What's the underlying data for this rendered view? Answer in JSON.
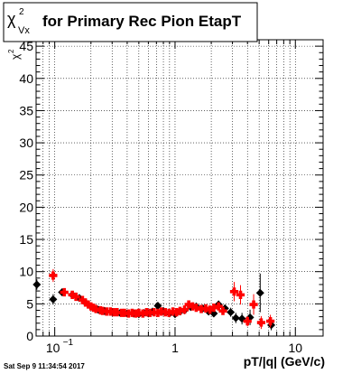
{
  "title": {
    "chi": "χ",
    "sup": "2",
    "sub": "Vx",
    "text": "for Primary Rec Pion EtapT"
  },
  "footer": {
    "timestamp": "Sat Sep  9 11:34:54 2017"
  },
  "chart_data": {
    "type": "scatter",
    "xscale": "log",
    "xlim": [
      0.07,
      17
    ],
    "ylim": [
      0,
      46
    ],
    "grid": true,
    "xlabel": "pT/|q| (GeV/c)",
    "ylabel": {
      "chi": "χ",
      "sup": "2"
    },
    "xticks": [
      {
        "value": 0.1,
        "base": "10",
        "exp": "−1"
      },
      {
        "value": 1,
        "label": "1"
      },
      {
        "value": 10,
        "label": "10"
      }
    ],
    "yticks": [
      0,
      5,
      10,
      15,
      20,
      25,
      30,
      35,
      40,
      45
    ],
    "colors": {
      "black_series": "#000000",
      "red_series": "#ff0000",
      "grid": "#000000"
    },
    "series": [
      {
        "marker": "diamond",
        "color": "#000000",
        "points": [
          [
            0.071,
            8.0,
            0.8
          ],
          [
            0.097,
            5.7,
            0.8
          ],
          [
            0.115,
            6.8,
            0.3
          ],
          [
            0.14,
            6.4,
            0.3
          ],
          [
            0.16,
            5.9,
            0.2
          ],
          [
            0.18,
            5.2,
            0.2
          ],
          [
            0.2,
            4.6,
            0.2
          ],
          [
            0.23,
            4.1,
            0.2
          ],
          [
            0.26,
            3.9,
            0.2
          ],
          [
            0.3,
            3.7,
            0.2
          ],
          [
            0.35,
            3.6,
            0.2
          ],
          [
            0.4,
            3.5,
            0.2
          ],
          [
            0.45,
            3.5,
            0.2
          ],
          [
            0.5,
            3.4,
            0.2
          ],
          [
            0.55,
            3.6,
            0.2
          ],
          [
            0.6,
            3.5,
            0.2
          ],
          [
            0.65,
            3.8,
            0.2
          ],
          [
            0.72,
            4.7,
            0.3
          ],
          [
            0.8,
            3.9,
            0.3
          ],
          [
            0.9,
            3.5,
            0.3
          ],
          [
            1.0,
            3.4,
            0.3
          ],
          [
            1.1,
            3.8,
            0.3
          ],
          [
            1.2,
            4.0,
            0.3
          ],
          [
            1.35,
            4.5,
            0.3
          ],
          [
            1.5,
            4.6,
            0.3
          ],
          [
            1.7,
            4.3,
            0.3
          ],
          [
            1.9,
            3.8,
            0.4
          ],
          [
            2.1,
            3.5,
            0.4
          ],
          [
            2.3,
            4.9,
            0.6
          ],
          [
            2.6,
            4.3,
            0.6
          ],
          [
            2.9,
            3.7,
            0.7
          ],
          [
            3.2,
            2.8,
            0.8
          ],
          [
            3.6,
            2.7,
            0.9
          ],
          [
            4.2,
            2.9,
            1.2
          ],
          [
            5.1,
            6.7,
            3.0
          ],
          [
            6.3,
            1.7,
            0.8
          ]
        ]
      },
      {
        "marker": "cross",
        "color": "#ff0000",
        "points": [
          [
            0.097,
            9.4,
            1.0
          ],
          [
            0.12,
            6.8,
            0.4
          ],
          [
            0.14,
            6.4,
            0.3
          ],
          [
            0.15,
            6.1,
            0.3
          ],
          [
            0.17,
            5.6,
            0.3
          ],
          [
            0.18,
            5.2,
            0.3
          ],
          [
            0.19,
            4.9,
            0.3
          ],
          [
            0.2,
            4.6,
            0.3
          ],
          [
            0.21,
            4.4,
            0.3
          ],
          [
            0.22,
            4.2,
            0.3
          ],
          [
            0.24,
            4.0,
            0.3
          ],
          [
            0.25,
            3.9,
            0.3
          ],
          [
            0.27,
            3.8,
            0.3
          ],
          [
            0.29,
            3.8,
            0.3
          ],
          [
            0.31,
            3.7,
            0.3
          ],
          [
            0.33,
            3.7,
            0.3
          ],
          [
            0.36,
            3.6,
            0.3
          ],
          [
            0.38,
            3.6,
            0.3
          ],
          [
            0.41,
            3.5,
            0.3
          ],
          [
            0.44,
            3.6,
            0.3
          ],
          [
            0.47,
            3.5,
            0.3
          ],
          [
            0.5,
            3.6,
            0.3
          ],
          [
            0.54,
            3.5,
            0.3
          ],
          [
            0.58,
            3.7,
            0.3
          ],
          [
            0.62,
            3.6,
            0.3
          ],
          [
            0.67,
            3.7,
            0.3
          ],
          [
            0.72,
            3.6,
            0.3
          ],
          [
            0.77,
            3.8,
            0.3
          ],
          [
            0.83,
            3.7,
            0.3
          ],
          [
            0.89,
            3.6,
            0.3
          ],
          [
            0.96,
            3.8,
            0.3
          ],
          [
            1.03,
            3.7,
            0.3
          ],
          [
            1.1,
            3.9,
            0.4
          ],
          [
            1.2,
            4.1,
            0.4
          ],
          [
            1.3,
            4.9,
            0.4
          ],
          [
            1.4,
            4.6,
            0.4
          ],
          [
            1.5,
            4.4,
            0.4
          ],
          [
            1.65,
            4.2,
            0.4
          ],
          [
            1.8,
            4.3,
            0.5
          ],
          [
            1.95,
            4.1,
            0.5
          ],
          [
            2.1,
            4.4,
            0.5
          ],
          [
            2.3,
            4.6,
            0.5
          ],
          [
            2.5,
            3.9,
            0.6
          ],
          [
            3.1,
            6.9,
            1.5
          ],
          [
            3.5,
            6.4,
            1.5
          ],
          [
            4.0,
            2.3,
            0.8
          ],
          [
            4.5,
            4.9,
            1.6
          ],
          [
            5.2,
            2.1,
            1.0
          ],
          [
            6.2,
            2.3,
            1.0
          ]
        ]
      }
    ]
  }
}
